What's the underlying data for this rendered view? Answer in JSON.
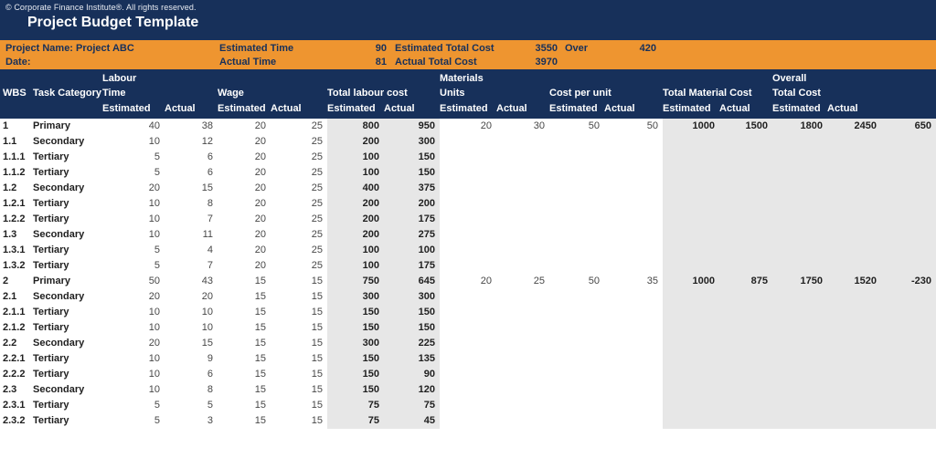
{
  "colors": {
    "navy": "#17305A",
    "orange": "#EE9530",
    "gray": "#E7E7E7"
  },
  "banner": {
    "copyright": "© Corporate Finance Institute®. All rights reserved.",
    "title": "Project Budget Template"
  },
  "summary": {
    "project_name": "Project Name: Project ABC",
    "date_label": "Date:",
    "estimated_time_label": "Estimated Time",
    "estimated_time_value": "90",
    "actual_time_label": "Actual Time",
    "actual_time_value": "81",
    "estimated_total_cost_label": "Estimated Total Cost",
    "estimated_total_cost_value": "3550",
    "actual_total_cost_label": "Actual Total Cost",
    "actual_total_cost_value": "3970",
    "over_label": "Over",
    "over_value": "420"
  },
  "table": {
    "headers": {
      "labour": "Labour",
      "materials": "Materials",
      "overall": "Overall",
      "wbs": "WBS",
      "task_category": "Task Category",
      "time": "Time",
      "wage": "Wage",
      "total_labour_cost": "Total labour cost",
      "units": "Units",
      "cost_per_unit": "Cost per unit",
      "total_material_cost": "Total Material Cost",
      "total_cost": "Total Cost",
      "estimated": "Estimated",
      "actual": "Actual"
    },
    "fields": [
      "wbs",
      "task_category",
      "labour_time_estimated",
      "labour_time_actual",
      "wage_estimated",
      "wage_actual",
      "total_labour_cost_estimated",
      "total_labour_cost_actual",
      "units_estimated",
      "units_actual",
      "cost_per_unit_estimated",
      "cost_per_unit_actual",
      "total_material_cost_estimated",
      "total_material_cost_actual",
      "total_cost_estimated",
      "total_cost_actual",
      "variance"
    ],
    "rows": [
      [
        "1",
        "Primary",
        "40",
        "38",
        "20",
        "25",
        "800",
        "950",
        "20",
        "30",
        "50",
        "50",
        "1000",
        "1500",
        "1800",
        "2450",
        "650"
      ],
      [
        "1.1",
        "Secondary",
        "10",
        "12",
        "20",
        "25",
        "200",
        "300",
        "",
        "",
        "",
        "",
        "",
        "",
        "",
        "",
        ""
      ],
      [
        "1.1.1",
        "Tertiary",
        "5",
        "6",
        "20",
        "25",
        "100",
        "150",
        "",
        "",
        "",
        "",
        "",
        "",
        "",
        "",
        ""
      ],
      [
        "1.1.2",
        "Tertiary",
        "5",
        "6",
        "20",
        "25",
        "100",
        "150",
        "",
        "",
        "",
        "",
        "",
        "",
        "",
        "",
        ""
      ],
      [
        "1.2",
        "Secondary",
        "20",
        "15",
        "20",
        "25",
        "400",
        "375",
        "",
        "",
        "",
        "",
        "",
        "",
        "",
        "",
        ""
      ],
      [
        "1.2.1",
        "Tertiary",
        "10",
        "8",
        "20",
        "25",
        "200",
        "200",
        "",
        "",
        "",
        "",
        "",
        "",
        "",
        "",
        ""
      ],
      [
        "1.2.2",
        "Tertiary",
        "10",
        "7",
        "20",
        "25",
        "200",
        "175",
        "",
        "",
        "",
        "",
        "",
        "",
        "",
        "",
        ""
      ],
      [
        "1.3",
        "Secondary",
        "10",
        "11",
        "20",
        "25",
        "200",
        "275",
        "",
        "",
        "",
        "",
        "",
        "",
        "",
        "",
        ""
      ],
      [
        "1.3.1",
        "Tertiary",
        "5",
        "4",
        "20",
        "25",
        "100",
        "100",
        "",
        "",
        "",
        "",
        "",
        "",
        "",
        "",
        ""
      ],
      [
        "1.3.2",
        "Tertiary",
        "5",
        "7",
        "20",
        "25",
        "100",
        "175",
        "",
        "",
        "",
        "",
        "",
        "",
        "",
        "",
        ""
      ],
      [
        "2",
        "Primary",
        "50",
        "43",
        "15",
        "15",
        "750",
        "645",
        "20",
        "25",
        "50",
        "35",
        "1000",
        "875",
        "1750",
        "1520",
        "-230"
      ],
      [
        "2.1",
        "Secondary",
        "20",
        "20",
        "15",
        "15",
        "300",
        "300",
        "",
        "",
        "",
        "",
        "",
        "",
        "",
        "",
        ""
      ],
      [
        "2.1.1",
        "Tertiary",
        "10",
        "10",
        "15",
        "15",
        "150",
        "150",
        "",
        "",
        "",
        "",
        "",
        "",
        "",
        "",
        ""
      ],
      [
        "2.1.2",
        "Tertiary",
        "10",
        "10",
        "15",
        "15",
        "150",
        "150",
        "",
        "",
        "",
        "",
        "",
        "",
        "",
        "",
        ""
      ],
      [
        "2.2",
        "Secondary",
        "20",
        "15",
        "15",
        "15",
        "300",
        "225",
        "",
        "",
        "",
        "",
        "",
        "",
        "",
        "",
        ""
      ],
      [
        "2.2.1",
        "Tertiary",
        "10",
        "9",
        "15",
        "15",
        "150",
        "135",
        "",
        "",
        "",
        "",
        "",
        "",
        "",
        "",
        ""
      ],
      [
        "2.2.2",
        "Tertiary",
        "10",
        "6",
        "15",
        "15",
        "150",
        "90",
        "",
        "",
        "",
        "",
        "",
        "",
        "",
        "",
        ""
      ],
      [
        "2.3",
        "Secondary",
        "10",
        "8",
        "15",
        "15",
        "150",
        "120",
        "",
        "",
        "",
        "",
        "",
        "",
        "",
        "",
        ""
      ],
      [
        "2.3.1",
        "Tertiary",
        "5",
        "5",
        "15",
        "15",
        "75",
        "75",
        "",
        "",
        "",
        "",
        "",
        "",
        "",
        "",
        ""
      ],
      [
        "2.3.2",
        "Tertiary",
        "5",
        "3",
        "15",
        "15",
        "75",
        "45",
        "",
        "",
        "",
        "",
        "",
        "",
        "",
        "",
        ""
      ]
    ]
  }
}
